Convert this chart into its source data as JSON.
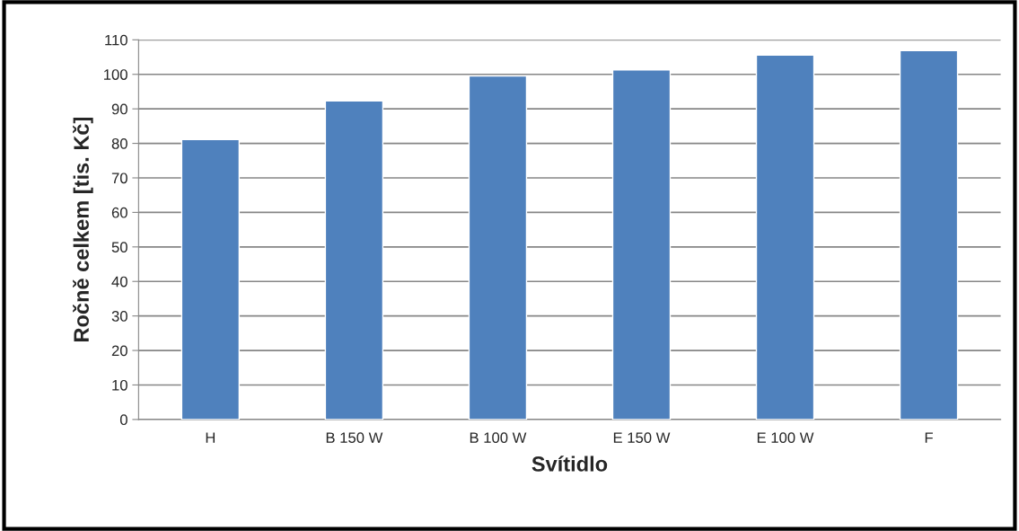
{
  "chart_data": {
    "type": "bar",
    "xlabel": "Svítidlo",
    "ylabel": "Ročně celkem [tis. Kč]",
    "categories": [
      "H",
      "B 150 W",
      "B 100 W",
      "E 150 W",
      "E 100 W",
      "F"
    ],
    "values": [
      81.1,
      92.3,
      99.5,
      101.3,
      105.6,
      106.9
    ],
    "color": "#4f81bd",
    "ylim": [
      0,
      110
    ],
    "yticks": [
      0,
      10,
      20,
      30,
      40,
      50,
      60,
      70,
      80,
      90,
      100,
      110
    ],
    "grid": "y",
    "legend": false
  }
}
